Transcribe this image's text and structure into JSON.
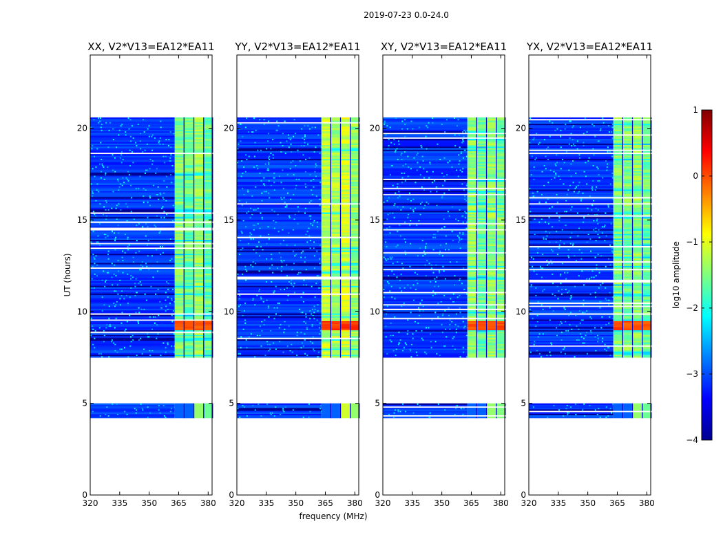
{
  "chart_data": {
    "type": "heatmap",
    "suptitle": "2019-07-23 0.0-24.0",
    "xlabel": "frequency (MHz)",
    "ylabel": "UT (hours)",
    "xlim": [
      320,
      382
    ],
    "ylim": [
      0,
      24
    ],
    "xticks": [
      320,
      335,
      350,
      365,
      380
    ],
    "yticks": [
      0,
      5,
      10,
      15,
      20
    ],
    "panels": [
      {
        "title": "XX, V2*V13=EA12*EA11",
        "band_levels": [
          -1.5,
          -1.6,
          -1.4,
          -1.6
        ],
        "flare_level": 0.0
      },
      {
        "title": "YY, V2*V13=EA12*EA11",
        "band_levels": [
          -1.2,
          -1.3,
          -1.1,
          -1.4
        ],
        "flare_level": 0.1
      },
      {
        "title": "XY, V2*V13=EA12*EA11",
        "band_levels": [
          -1.4,
          -1.6,
          -1.4,
          -1.5
        ],
        "flare_level": 0.0
      },
      {
        "title": "YX, V2*V13=EA12*EA11",
        "band_levels": [
          -1.5,
          -1.5,
          -1.4,
          -1.6
        ],
        "flare_level": 0.0
      }
    ],
    "observation_blocks_ut": [
      [
        4.2,
        5.0
      ],
      [
        7.5,
        20.6
      ]
    ],
    "strong_band_mhz": [
      [
        363,
        367.5
      ],
      [
        368,
        372.5
      ],
      [
        373,
        377.5
      ],
      [
        378,
        382
      ]
    ],
    "flare_ut": [
      9.0,
      9.5
    ],
    "colorbar": {
      "label": "log10 amplitude",
      "range": [
        -4,
        1
      ],
      "ticks": [
        1,
        0,
        -1,
        -2,
        -3,
        -4
      ],
      "colormap": "jet"
    }
  }
}
